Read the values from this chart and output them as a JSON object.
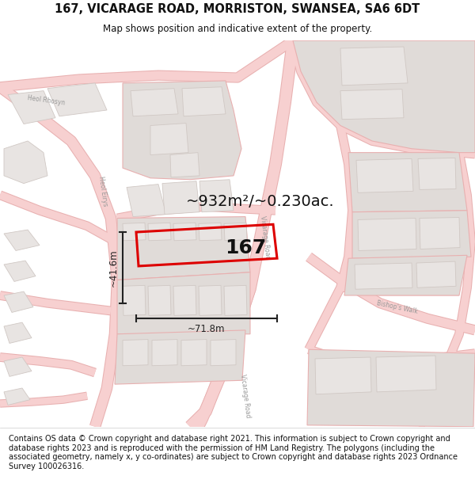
{
  "title": "167, VICARAGE ROAD, MORRISTON, SWANSEA, SA6 6DT",
  "subtitle": "Map shows position and indicative extent of the property.",
  "footer": "Contains OS data © Crown copyright and database right 2021. This information is subject to Crown copyright and database rights 2023 and is reproduced with the permission of\nHM Land Registry. The polygons (including the associated geometry, namely x, y\nco-ordinates) are subject to Crown copyright and database rights 2023 Ordnance Survey\n100026316.",
  "area_label": "~932m²/~0.230ac.",
  "width_label": "~71.8m",
  "height_label": "~41.6m",
  "property_label": "167",
  "map_bg": "#faf8f8",
  "road_fill": "#f7d0d0",
  "road_outline": "#e8b0b0",
  "road_center": "#f0c0c0",
  "building_fill": "#e8e4e2",
  "building_outline": "#d0c8c4",
  "block_fill": "#e0dbd8",
  "highlight_color": "#dd0000",
  "text_color": "#111111",
  "street_label_color": "#999999",
  "dim_color": "#222222",
  "figsize": [
    6.0,
    6.25
  ],
  "dpi": 100
}
